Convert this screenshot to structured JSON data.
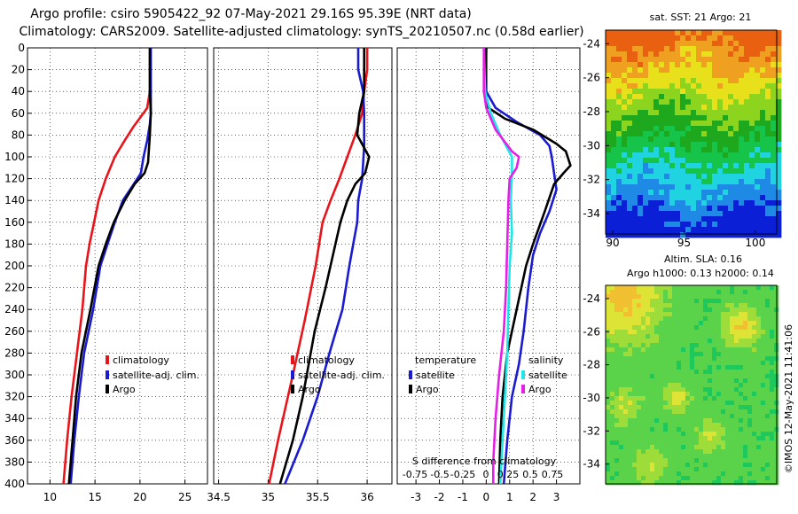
{
  "title_line1": "Argo profile: csiro 5905422_92 07-May-2021 29.16S 95.39E (NRT data)",
  "title_line2": "Climatology: CARS2009. Satellite-adjusted climatology: synTS_20210507.nc (0.58d earlier)",
  "depth_ticks": [
    0,
    20,
    40,
    60,
    80,
    100,
    120,
    140,
    160,
    180,
    200,
    220,
    240,
    260,
    280,
    300,
    320,
    340,
    360,
    380,
    400
  ],
  "colors": {
    "climatology": "#e8141a",
    "satellite": "#1a1ad0",
    "argo": "#000000",
    "sal_sat": "#1fe6e6",
    "sal_argo": "#e61fe6"
  },
  "chart_data": [
    {
      "type": "line",
      "id": "temperature-profile",
      "xlim": [
        7.5,
        27.5
      ],
      "ylim": [
        0,
        400
      ],
      "xticks": [
        10,
        15,
        20,
        25
      ],
      "legend": [
        "climatology",
        "satellite-adj. clim.",
        "Argo"
      ],
      "series": [
        {
          "name": "climatology",
          "color": "climatology",
          "points": [
            [
              21.1,
              0
            ],
            [
              21.1,
              40
            ],
            [
              20.8,
              55
            ],
            [
              20.2,
              62
            ],
            [
              19.3,
              72
            ],
            [
              18.3,
              85
            ],
            [
              17.2,
              100
            ],
            [
              16.2,
              120
            ],
            [
              15.4,
              140
            ],
            [
              14.9,
              160
            ],
            [
              14.4,
              180
            ],
            [
              14,
              200
            ],
            [
              13.6,
              240
            ],
            [
              13,
              280
            ],
            [
              12.4,
              320
            ],
            [
              11.9,
              360
            ],
            [
              11.5,
              400
            ]
          ]
        },
        {
          "name": "satellite-adj. clim.",
          "color": "satellite",
          "points": [
            [
              21.2,
              0
            ],
            [
              21.2,
              60
            ],
            [
              21.1,
              70
            ],
            [
              20.8,
              85
            ],
            [
              20.4,
              100
            ],
            [
              20.1,
              115
            ],
            [
              19.3,
              125
            ],
            [
              18.1,
              140
            ],
            [
              17.2,
              160
            ],
            [
              16.4,
              180
            ],
            [
              15.6,
              200
            ],
            [
              14.8,
              240
            ],
            [
              13.8,
              280
            ],
            [
              13.2,
              320
            ],
            [
              12.7,
              360
            ],
            [
              12.3,
              400
            ]
          ]
        },
        {
          "name": "Argo",
          "color": "argo",
          "points": [
            [
              21.1,
              0
            ],
            [
              21.1,
              40
            ],
            [
              21.2,
              60
            ],
            [
              21.1,
              80
            ],
            [
              20.9,
              105
            ],
            [
              20.5,
              115
            ],
            [
              19.4,
              125
            ],
            [
              18.3,
              140
            ],
            [
              17.1,
              160
            ],
            [
              16.2,
              180
            ],
            [
              15.4,
              200
            ],
            [
              14.5,
              240
            ],
            [
              13.5,
              280
            ],
            [
              12.9,
              320
            ],
            [
              12.5,
              360
            ],
            [
              12.1,
              400
            ]
          ]
        }
      ]
    },
    {
      "type": "line",
      "id": "salinity-profile",
      "xlim": [
        34.45,
        36.25
      ],
      "ylim": [
        0,
        400
      ],
      "xticks": [
        34.5,
        35,
        35.5,
        36
      ],
      "xtick_labels": [
        "34.5",
        "35",
        "35.5",
        "36"
      ],
      "legend": [
        "climatology",
        "satellite-adj. clim.",
        "Argo"
      ],
      "series": [
        {
          "name": "climatology",
          "color": "climatology",
          "points": [
            [
              36.0,
              0
            ],
            [
              36.0,
              20
            ],
            [
              35.97,
              40
            ],
            [
              35.95,
              60
            ],
            [
              35.88,
              80
            ],
            [
              35.8,
              100
            ],
            [
              35.72,
              120
            ],
            [
              35.63,
              140
            ],
            [
              35.55,
              160
            ],
            [
              35.48,
              200
            ],
            [
              35.37,
              250
            ],
            [
              35.25,
              300
            ],
            [
              35.1,
              360
            ],
            [
              35.01,
              400
            ]
          ]
        },
        {
          "name": "satellite-adj. clim.",
          "color": "satellite",
          "points": [
            [
              35.91,
              0
            ],
            [
              35.91,
              20
            ],
            [
              35.96,
              40
            ],
            [
              35.97,
              60
            ],
            [
              35.97,
              90
            ],
            [
              35.95,
              120
            ],
            [
              35.91,
              140
            ],
            [
              35.9,
              160
            ],
            [
              35.86,
              180
            ],
            [
              35.82,
              200
            ],
            [
              35.75,
              240
            ],
            [
              35.62,
              280
            ],
            [
              35.5,
              320
            ],
            [
              35.35,
              360
            ],
            [
              35.17,
              400
            ]
          ]
        },
        {
          "name": "Argo",
          "color": "argo",
          "points": [
            [
              35.97,
              0
            ],
            [
              35.97,
              40
            ],
            [
              35.92,
              60
            ],
            [
              35.9,
              80
            ],
            [
              35.96,
              90
            ],
            [
              36.02,
              100
            ],
            [
              35.98,
              115
            ],
            [
              35.88,
              125
            ],
            [
              35.8,
              140
            ],
            [
              35.73,
              160
            ],
            [
              35.68,
              180
            ],
            [
              35.58,
              220
            ],
            [
              35.47,
              260
            ],
            [
              35.41,
              290
            ],
            [
              35.35,
              320
            ],
            [
              35.25,
              360
            ],
            [
              35.12,
              400
            ]
          ]
        }
      ]
    },
    {
      "type": "line",
      "id": "difference-profile",
      "xlim": [
        -3.8,
        4.0
      ],
      "ylim": [
        0,
        400
      ],
      "xticks": [
        -3,
        -2,
        -1,
        0,
        1,
        2,
        3
      ],
      "xtick_labels": [
        "-3",
        "-2",
        "-1",
        "0",
        "1",
        "2",
        "3"
      ],
      "secondary_label": "S difference from climatology",
      "secondary_ticks": [
        "-0.75",
        "-0.5",
        "-0.25",
        "0",
        "0.25",
        "0.5",
        "0.75"
      ],
      "legend_groups": [
        {
          "heading": "temperature",
          "items": [
            "satellite",
            "Argo"
          ]
        },
        {
          "heading": "salinity",
          "items": [
            "satellite",
            "Argo"
          ]
        }
      ],
      "series": [
        {
          "name": "temperature satellite",
          "color": "satellite",
          "points": [
            [
              0,
              0
            ],
            [
              0,
              40
            ],
            [
              0.4,
              55
            ],
            [
              1.3,
              68
            ],
            [
              2.3,
              80
            ],
            [
              2.7,
              90
            ],
            [
              2.8,
              100
            ],
            [
              2.9,
              115
            ],
            [
              3.0,
              130
            ],
            [
              2.7,
              150
            ],
            [
              2.3,
              170
            ],
            [
              2.0,
              190
            ],
            [
              1.8,
              220
            ],
            [
              1.6,
              260
            ],
            [
              1.4,
              290
            ],
            [
              1.1,
              320
            ],
            [
              0.9,
              360
            ],
            [
              0.75,
              400
            ]
          ]
        },
        {
          "name": "temperature Argo",
          "color": "argo",
          "points": [
            [
              0,
              0
            ],
            [
              -0.05,
              40
            ],
            [
              0.1,
              55
            ],
            [
              0.8,
              65
            ],
            [
              2.0,
              75
            ],
            [
              3.0,
              88
            ],
            [
              3.4,
              95
            ],
            [
              3.6,
              108
            ],
            [
              3.3,
              115
            ],
            [
              2.9,
              125
            ],
            [
              2.5,
              150
            ],
            [
              2.0,
              180
            ],
            [
              1.7,
              200
            ],
            [
              1.3,
              240
            ],
            [
              0.9,
              280
            ],
            [
              0.7,
              320
            ],
            [
              0.6,
              360
            ],
            [
              0.55,
              400
            ]
          ]
        },
        {
          "name": "salinity satellite",
          "color": "sal_sat",
          "points": [
            [
              -0.1,
              0
            ],
            [
              -0.05,
              40
            ],
            [
              0.2,
              60
            ],
            [
              0.6,
              80
            ],
            [
              1.1,
              100
            ],
            [
              1.1,
              115
            ],
            [
              1.05,
              140
            ],
            [
              1.1,
              170
            ],
            [
              1.0,
              200
            ],
            [
              0.95,
              240
            ],
            [
              0.9,
              280
            ],
            [
              0.8,
              320
            ],
            [
              0.7,
              360
            ],
            [
              0.6,
              400
            ]
          ]
        },
        {
          "name": "salinity Argo",
          "color": "sal_argo",
          "points": [
            [
              -0.1,
              0
            ],
            [
              -0.1,
              40
            ],
            [
              0,
              55
            ],
            [
              0.4,
              75
            ],
            [
              1.1,
              95
            ],
            [
              1.4,
              100
            ],
            [
              1.3,
              110
            ],
            [
              1.0,
              120
            ],
            [
              0.95,
              140
            ],
            [
              0.9,
              180
            ],
            [
              0.85,
              220
            ],
            [
              0.75,
              260
            ],
            [
              0.55,
              300
            ],
            [
              0.4,
              340
            ],
            [
              0.3,
              380
            ],
            [
              0.3,
              400
            ]
          ]
        }
      ]
    },
    {
      "type": "heatmap",
      "id": "sst-map",
      "title": "sat. SST: 21 Argo: 21",
      "yticks": [
        -24,
        -26,
        -28,
        -30,
        -32,
        -34
      ],
      "xticks": [
        90,
        95,
        100
      ],
      "xlim": [
        89.5,
        101.5
      ],
      "ylim": [
        -35.2,
        -23.2
      ],
      "palette": [
        "#0a1fd6",
        "#1f8ae6",
        "#1fd4e0",
        "#17c44a",
        "#1ea81e",
        "#8cd41e",
        "#e8e01a",
        "#f0a020",
        "#e86010"
      ]
    },
    {
      "type": "heatmap",
      "id": "sla-map",
      "title_line1": "Altim. SLA: 0.16",
      "title_line2": "Argo h1000: 0.13 h2000: 0.14",
      "yticks": [
        -24,
        -26,
        -28,
        -30,
        -32,
        -34
      ],
      "ylim": [
        -35.2,
        -23.2
      ],
      "palette": [
        "#1fc85a",
        "#5ad24a",
        "#9edc3a",
        "#dde436",
        "#f0c030",
        "#f09a28"
      ]
    }
  ],
  "credit": "©IMOS 12-May-2021 11:41:06"
}
